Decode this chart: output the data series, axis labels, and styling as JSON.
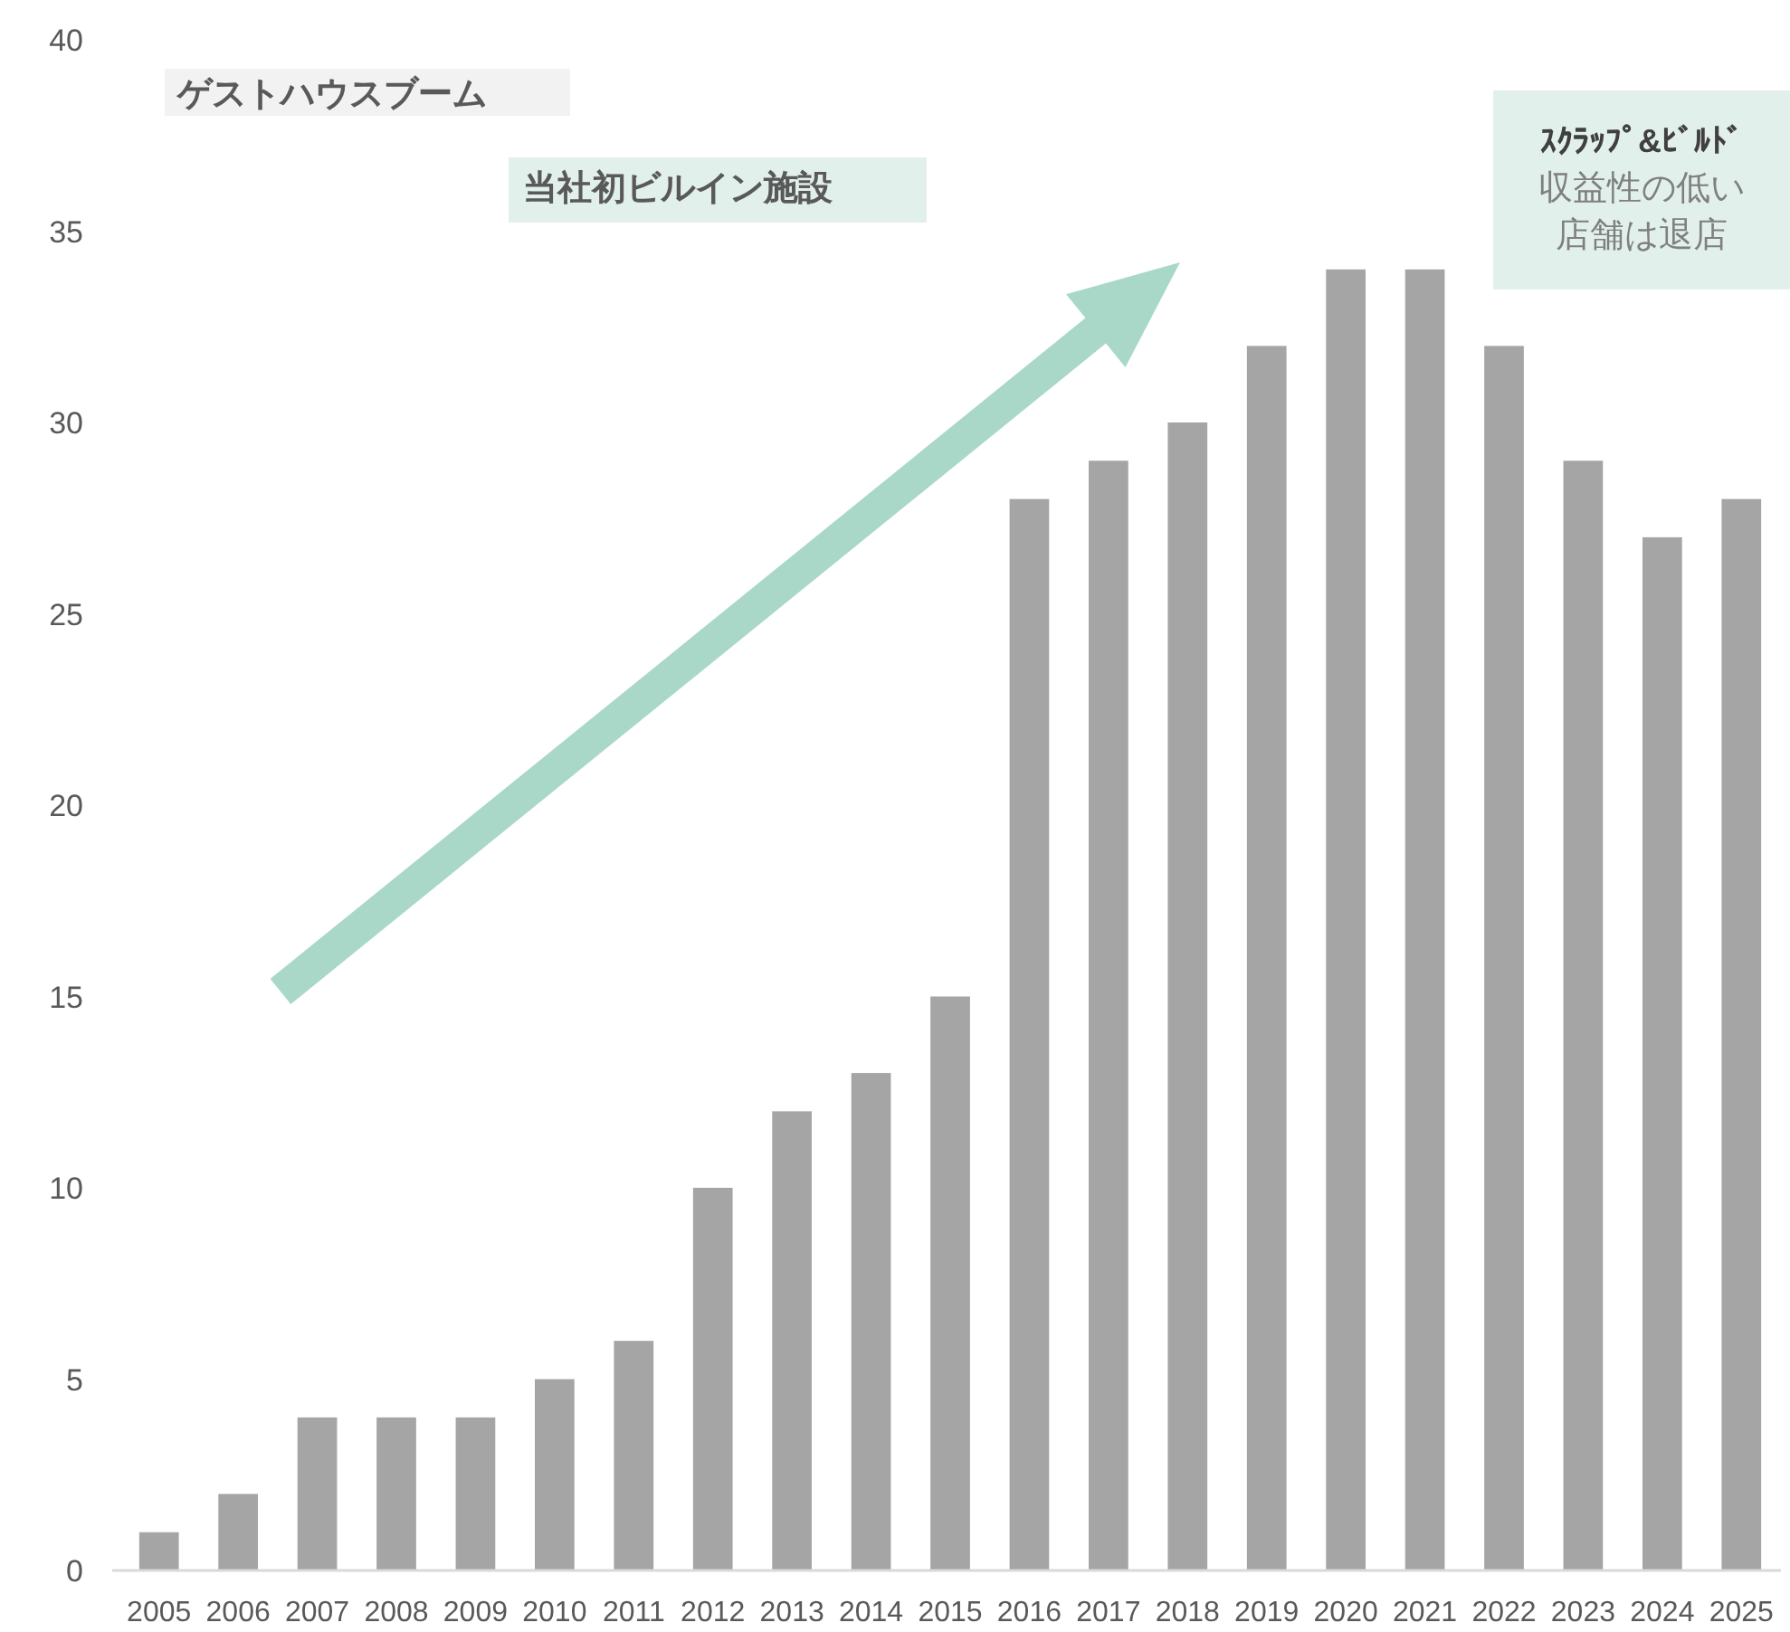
{
  "chart_data": {
    "type": "bar",
    "categories": [
      "2005",
      "2006",
      "2007",
      "2008",
      "2009",
      "2010",
      "2011",
      "2012",
      "2013",
      "2014",
      "2015",
      "2016",
      "2017",
      "2018",
      "2019",
      "2020",
      "2021",
      "2022",
      "2023",
      "2024",
      "2025"
    ],
    "values": [
      1,
      2,
      4,
      4,
      4,
      5,
      6,
      10,
      12,
      13,
      15,
      28,
      29,
      30,
      32,
      34,
      34,
      32,
      29,
      27,
      28
    ],
    "color": "#a5a5a5",
    "ylim": [
      0,
      40
    ],
    "yticks": [
      0,
      5,
      10,
      15,
      20,
      25,
      30,
      35,
      40
    ],
    "grid": false,
    "annotations": [
      "ゲストハウスブーム",
      "当社初ビルイン施設",
      "ｽｸﾗｯﾌﾟ&ﾋﾞﾙﾄﾞ",
      "収益性の低い店舗は退店"
    ]
  }
}
